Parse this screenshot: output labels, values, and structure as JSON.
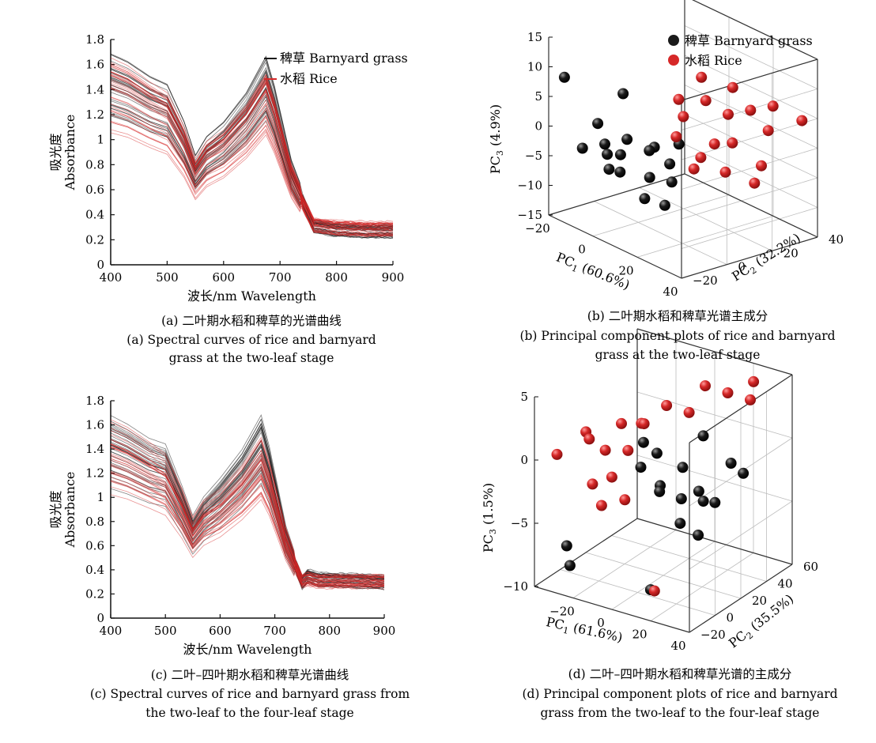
{
  "colors": {
    "barnyard": "#1a1a1a",
    "rice": "#d62828"
  },
  "legend": {
    "barnyard": "稗草 Barnyard grass",
    "rice": "水稻 Rice"
  },
  "captions": {
    "a": [
      "(a) 二叶期水稻和稗草的光谱曲线",
      "(a) Spectral curves of rice and barnyard",
      "grass at the two-leaf stage"
    ],
    "b": [
      "(b) 二叶期水稻和稗草光谱主成分",
      "(b) Principal component plots of rice and barnyard",
      "grass at the two-leaf stage"
    ],
    "c": [
      "(c) 二叶–四叶期水稻和稗草光谱曲线",
      "(c) Spectral curves of rice and barnyard grass from",
      "the two-leaf to the four-leaf stage"
    ],
    "d": [
      "(d) 二叶–四叶期水稻和稗草光谱的主成分",
      "(d) Principal component plots of rice and barnyard",
      "grass from the two-leaf to the four-leaf stage"
    ]
  },
  "chart_data": [
    {
      "id": "a",
      "type": "line",
      "xlabel": "波长/nm Wavelength",
      "ylabel": "吸光度 Absorbance",
      "xlim": [
        400,
        900
      ],
      "ylim": [
        0,
        1.8
      ],
      "xticks": [
        400,
        500,
        600,
        700,
        800,
        900
      ],
      "yticks": [
        0,
        0.2,
        0.4,
        0.6,
        0.8,
        1.0,
        1.2,
        1.4,
        1.6,
        1.8
      ],
      "series": [
        {
          "name": "稗草 Barnyard grass",
          "color": "#1a1a1a",
          "x": [
            400,
            430,
            470,
            500,
            530,
            550,
            570,
            600,
            640,
            675,
            690,
            720,
            760,
            800,
            850,
            900
          ],
          "y": [
            1.4,
            1.35,
            1.25,
            1.2,
            0.95,
            0.72,
            0.85,
            0.95,
            1.15,
            1.4,
            1.2,
            0.7,
            0.3,
            0.27,
            0.26,
            0.26
          ]
        },
        {
          "name": "水稻 Rice",
          "color": "#d62828",
          "x": [
            400,
            430,
            470,
            500,
            530,
            550,
            570,
            600,
            640,
            675,
            690,
            720,
            760,
            800,
            850,
            900
          ],
          "y": [
            1.38,
            1.33,
            1.22,
            1.15,
            0.92,
            0.7,
            0.82,
            0.9,
            1.08,
            1.3,
            1.12,
            0.68,
            0.32,
            0.3,
            0.29,
            0.29
          ]
        }
      ]
    },
    {
      "id": "b",
      "type": "scatter",
      "xlabel": "PC1 (60.6%)",
      "ylabel": "PC2 (32.2%)",
      "zlabel": "PC3 (4.9%)",
      "xlim": [
        -20,
        40
      ],
      "ylim": [
        -20,
        40
      ],
      "zlim": [
        -15,
        15
      ],
      "xticks": [
        -20,
        0,
        20,
        40
      ],
      "yticks": [
        -20,
        0,
        20,
        40
      ],
      "zticks": [
        -15,
        -10,
        -5,
        0,
        5,
        10,
        15
      ],
      "series": [
        {
          "name": "稗草 Barnyard grass",
          "color": "#1a1a1a",
          "points": [
            [
              -15,
              -10,
              -4
            ],
            [
              -10,
              -5,
              -3
            ],
            [
              -8,
              0,
              -5
            ],
            [
              -5,
              -8,
              -6
            ],
            [
              0,
              5,
              -8
            ],
            [
              2,
              -10,
              -5
            ],
            [
              5,
              0,
              -2
            ],
            [
              -12,
              5,
              4
            ],
            [
              -18,
              -15,
              8
            ],
            [
              -3,
              10,
              -4
            ],
            [
              8,
              -5,
              -9
            ],
            [
              10,
              5,
              -7
            ],
            [
              -6,
              -12,
              2
            ],
            [
              3,
              15,
              -3
            ],
            [
              12,
              0,
              -10
            ],
            [
              -14,
              0,
              -6
            ],
            [
              6,
              8,
              -5
            ],
            [
              -2,
              -3,
              -1
            ]
          ]
        },
        {
          "name": "水稻 Rice",
          "color": "#d62828",
          "points": [
            [
              10,
              20,
              5
            ],
            [
              15,
              25,
              3
            ],
            [
              20,
              30,
              4
            ],
            [
              25,
              35,
              5
            ],
            [
              30,
              25,
              -3
            ],
            [
              5,
              15,
              2
            ],
            [
              18,
              10,
              -2
            ],
            [
              22,
              20,
              0
            ],
            [
              12,
              5,
              1
            ],
            [
              28,
              30,
              2
            ],
            [
              8,
              10,
              6
            ],
            [
              16,
              18,
              -1
            ],
            [
              24,
              15,
              -4
            ],
            [
              35,
              38,
              4
            ],
            [
              32,
              20,
              -5
            ],
            [
              14,
              28,
              7
            ],
            [
              20,
              5,
              -3
            ],
            [
              6,
              22,
              8
            ]
          ]
        }
      ]
    },
    {
      "id": "c",
      "type": "line",
      "xlabel": "波长/nm Wavelength",
      "ylabel": "吸光度 Absorbance",
      "xlim": [
        400,
        900
      ],
      "ylim": [
        0,
        1.8
      ],
      "xticks": [
        400,
        500,
        600,
        700,
        800,
        900
      ],
      "yticks": [
        0,
        0.2,
        0.4,
        0.6,
        0.8,
        1.0,
        1.2,
        1.4,
        1.6,
        1.8
      ],
      "series": [
        {
          "name": "稗草 Barnyard grass",
          "color": "#1a1a1a",
          "x": [
            400,
            430,
            470,
            500,
            530,
            550,
            570,
            600,
            640,
            675,
            690,
            720,
            750,
            760,
            780,
            800,
            850,
            900
          ],
          "y": [
            1.42,
            1.36,
            1.26,
            1.22,
            0.93,
            0.72,
            0.85,
            0.98,
            1.18,
            1.42,
            1.2,
            0.65,
            0.3,
            0.35,
            0.32,
            0.32,
            0.31,
            0.3
          ]
        },
        {
          "name": "水稻 Rice",
          "color": "#d62828",
          "x": [
            400,
            430,
            470,
            500,
            530,
            550,
            570,
            600,
            640,
            675,
            690,
            720,
            750,
            760,
            780,
            800,
            850,
            900
          ],
          "y": [
            1.35,
            1.3,
            1.2,
            1.12,
            0.88,
            0.68,
            0.8,
            0.88,
            1.05,
            1.25,
            1.08,
            0.62,
            0.3,
            0.32,
            0.3,
            0.3,
            0.3,
            0.3
          ]
        }
      ]
    },
    {
      "id": "d",
      "type": "scatter",
      "xlabel": "PC1 (61.6%)",
      "ylabel": "PC2 (35.5%)",
      "zlabel": "PC3 (1.5%)",
      "xlim": [
        -40,
        40
      ],
      "ylim": [
        -20,
        60
      ],
      "zlim": [
        -10,
        5
      ],
      "xticks": [
        -20,
        0,
        20,
        40
      ],
      "yticks": [
        -20,
        0,
        20,
        40,
        60
      ],
      "zticks": [
        -10,
        -5,
        0,
        5
      ],
      "series": [
        {
          "name": "稗草 Barnyard grass",
          "color": "#1a1a1a",
          "points": [
            [
              5,
              10,
              -2
            ],
            [
              10,
              20,
              -1
            ],
            [
              15,
              25,
              -3
            ],
            [
              20,
              30,
              -4
            ],
            [
              0,
              15,
              0
            ],
            [
              8,
              5,
              -2
            ],
            [
              12,
              15,
              -5
            ],
            [
              18,
              20,
              -6
            ],
            [
              -30,
              -10,
              -7
            ],
            [
              -25,
              -15,
              -8
            ],
            [
              25,
              35,
              -1
            ],
            [
              3,
              0,
              2
            ],
            [
              22,
              18,
              -3
            ],
            [
              -5,
              10,
              -1
            ],
            [
              14,
              30,
              1
            ],
            [
              10,
              -5,
              -9
            ],
            [
              28,
              40,
              -2
            ],
            [
              6,
              25,
              -4
            ]
          ]
        },
        {
          "name": "水稻 Rice",
          "color": "#d62828",
          "points": [
            [
              -35,
              -10,
              0
            ],
            [
              -25,
              0,
              1
            ],
            [
              -20,
              5,
              0
            ],
            [
              -15,
              10,
              2
            ],
            [
              -10,
              -5,
              -1
            ],
            [
              -5,
              0,
              1
            ],
            [
              0,
              5,
              3
            ],
            [
              5,
              15,
              4
            ],
            [
              10,
              25,
              3
            ],
            [
              15,
              30,
              5
            ],
            [
              -30,
              5,
              1
            ],
            [
              -20,
              -5,
              -2
            ],
            [
              -12,
              -10,
              -3
            ],
            [
              20,
              40,
              4
            ],
            [
              25,
              50,
              3
            ],
            [
              0,
              -10,
              -2
            ],
            [
              -8,
              15,
              2
            ],
            [
              30,
              45,
              5
            ],
            [
              12,
              -5,
              -9
            ]
          ]
        }
      ]
    }
  ]
}
